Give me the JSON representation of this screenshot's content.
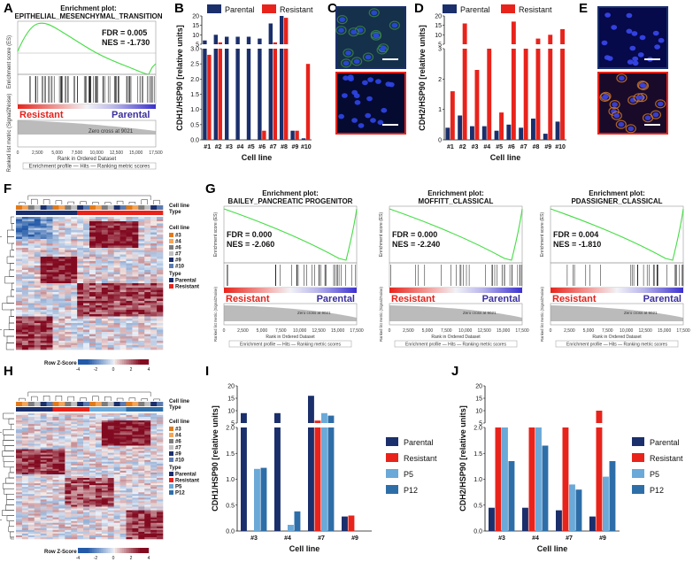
{
  "panel_letters": [
    "A",
    "B",
    "C",
    "D",
    "E",
    "F",
    "G",
    "H",
    "I",
    "J"
  ],
  "colors": {
    "parental": "#1a2f6b",
    "resistant": "#e8231b",
    "p5": "#6aa9d8",
    "p12": "#2e6ea8",
    "enrich": "#44dd44"
  },
  "panelA": {
    "title1": "Enrichment plot:",
    "title2": "EPITHELIAL_MESENCHYMAL_TRANSITION",
    "fdr": "FDR = 0.005",
    "nes": "NES = -1.730",
    "left_label": "Resistant",
    "right_label": "Parental",
    "y_label_top": "Enrichment score (ES)",
    "y_label_bottom": "Ranked list metric (Signal2Noise)",
    "x_label": "Rank in Ordered Dataset",
    "zero_cross": "Zero cross at 9021",
    "x_ticks": [
      "0",
      "2,500",
      "5,000",
      "7,500",
      "10,000",
      "12,500",
      "15,000",
      "17,500"
    ],
    "legend": "Enrichment profile — Hits — Ranking metric scores"
  },
  "chart_data": [
    {
      "id": "B",
      "type": "bar",
      "ylabel": "CDH1/HSP90 [relative units]",
      "xlabel": "Cell line",
      "categories": [
        "#1",
        "#2",
        "#3",
        "#4",
        "#5",
        "#6",
        "#7",
        "#8",
        "#9",
        "#10"
      ],
      "series": [
        {
          "name": "Parental",
          "values": [
            7,
            10,
            9,
            9,
            9,
            8,
            16,
            20,
            0.3,
            0.05
          ]
        },
        {
          "name": "Resistant",
          "values": [
            2.8,
            6,
            0,
            0,
            0,
            0.3,
            6,
            19,
            0.3,
            2.5
          ]
        }
      ],
      "ytick_lower": [
        "0.0",
        "0.5",
        "1.0",
        "1.5",
        "2.0",
        "2.5",
        "3.0"
      ],
      "ytick_upper": [
        "5",
        "10",
        "15",
        "20"
      ]
    },
    {
      "id": "D",
      "type": "bar",
      "ylabel": "CDH2/HSP90 [relative units]",
      "xlabel": "Cell line",
      "categories": [
        "#1",
        "#2",
        "#3",
        "#4",
        "#5",
        "#6",
        "#7",
        "#8",
        "#9",
        "#10"
      ],
      "series": [
        {
          "name": "Parental",
          "values": [
            0.4,
            0.8,
            0.45,
            0.45,
            0.3,
            0.5,
            0.4,
            0.7,
            0.2,
            0.6
          ]
        },
        {
          "name": "Resistant",
          "values": [
            1.6,
            16,
            2.3,
            4,
            0.9,
            17,
            4,
            8,
            10,
            13
          ]
        }
      ],
      "ytick_lower": [
        "0",
        "1",
        "2",
        "3"
      ],
      "ytick_upper": [
        "5",
        "10",
        "15",
        "20"
      ]
    },
    {
      "id": "I",
      "type": "bar",
      "ylabel": "CDH1/HSP90 [relative units]",
      "xlabel": "Cell line",
      "categories": [
        "#3",
        "#4",
        "#7",
        "#9"
      ],
      "series": [
        {
          "name": "Parental",
          "values": [
            9,
            9,
            16,
            0.28
          ]
        },
        {
          "name": "Resistant",
          "values": [
            0,
            0,
            6,
            0.3
          ]
        },
        {
          "name": "P5",
          "values": [
            1.2,
            0.12,
            9,
            0
          ]
        },
        {
          "name": "P12",
          "values": [
            1.22,
            0.38,
            8,
            0
          ]
        }
      ],
      "ytick_lower": [
        "0.0",
        "0.5",
        "1.0",
        "1.5",
        "2.0"
      ],
      "ytick_upper": [
        "5",
        "10",
        "15",
        "20"
      ]
    },
    {
      "id": "J",
      "type": "bar",
      "ylabel": "CDH2/HSP90 [relative units]",
      "xlabel": "Cell line",
      "categories": [
        "#3",
        "#4",
        "#7",
        "#9"
      ],
      "series": [
        {
          "name": "Parental",
          "values": [
            0.45,
            0.45,
            0.4,
            0.28
          ]
        },
        {
          "name": "Resistant",
          "values": [
            2.5,
            4,
            3.5,
            10
          ]
        },
        {
          "name": "P5",
          "values": [
            2.5,
            2.5,
            0.9,
            1.05
          ]
        },
        {
          "name": "P12",
          "values": [
            1.35,
            1.65,
            0.8,
            1.35
          ]
        }
      ],
      "ytick_lower": [
        "0.0",
        "0.5",
        "1.0",
        "1.5",
        "2.0"
      ],
      "ytick_upper": [
        "5",
        "10",
        "15",
        "20"
      ]
    }
  ],
  "legendBD": {
    "parental": "Parental",
    "resistant": "Resistant"
  },
  "legendIJ": {
    "parental": "Parental",
    "resistant": "Resistant",
    "p5": "P5",
    "p12": "P12"
  },
  "panelG": [
    {
      "t1": "Enrichment plot:",
      "t2": "BAILEY_PANCREATIC PROGENITOR",
      "fdr": "FDR = 0.000",
      "nes": "NES = -2.060"
    },
    {
      "t1": "Enrichment plot:",
      "t2": "MOFFITT_CLASSICAL",
      "fdr": "FDR = 0.000",
      "nes": "NES = -2.240"
    },
    {
      "t1": "Enrichment plot:",
      "t2": "PDASSIGNER_CLASSICAL",
      "fdr": "FDR = 0.004",
      "nes": "NES = -1.810"
    }
  ],
  "panelG_common": {
    "left_label": "Resistant",
    "right_label": "Parental",
    "x_label": "Rank in Ordered Dataset",
    "zero_cross": "Zero cross at 9021",
    "legend": "Enrichment profile — Hits — Ranking metric scores",
    "y_label_top": "Enrichment score (ES)",
    "y_label_bottom": "Ranked list metric (Signal2Noise)"
  },
  "heatmapF": {
    "cell_line_label": "Cell line",
    "type_label": "Type",
    "legend_cell_lines": [
      "#3",
      "#4",
      "#6",
      "#7",
      "#9",
      "#10"
    ],
    "legend_types": [
      "Parental",
      "Resistant"
    ],
    "zscore_label": "Row Z-Score",
    "zscore_ticks": [
      "-4",
      "-2",
      "0",
      "2",
      "4"
    ]
  },
  "heatmapH": {
    "cell_line_label": "Cell line",
    "type_label": "Type",
    "legend_cell_lines": [
      "#3",
      "#4",
      "#6",
      "#7",
      "#9",
      "#10"
    ],
    "legend_types": [
      "Parental",
      "Resistant",
      "P5",
      "P12"
    ],
    "zscore_label": "Row Z-Score",
    "zscore_ticks": [
      "-4",
      "-2",
      "0",
      "2",
      "4"
    ]
  }
}
